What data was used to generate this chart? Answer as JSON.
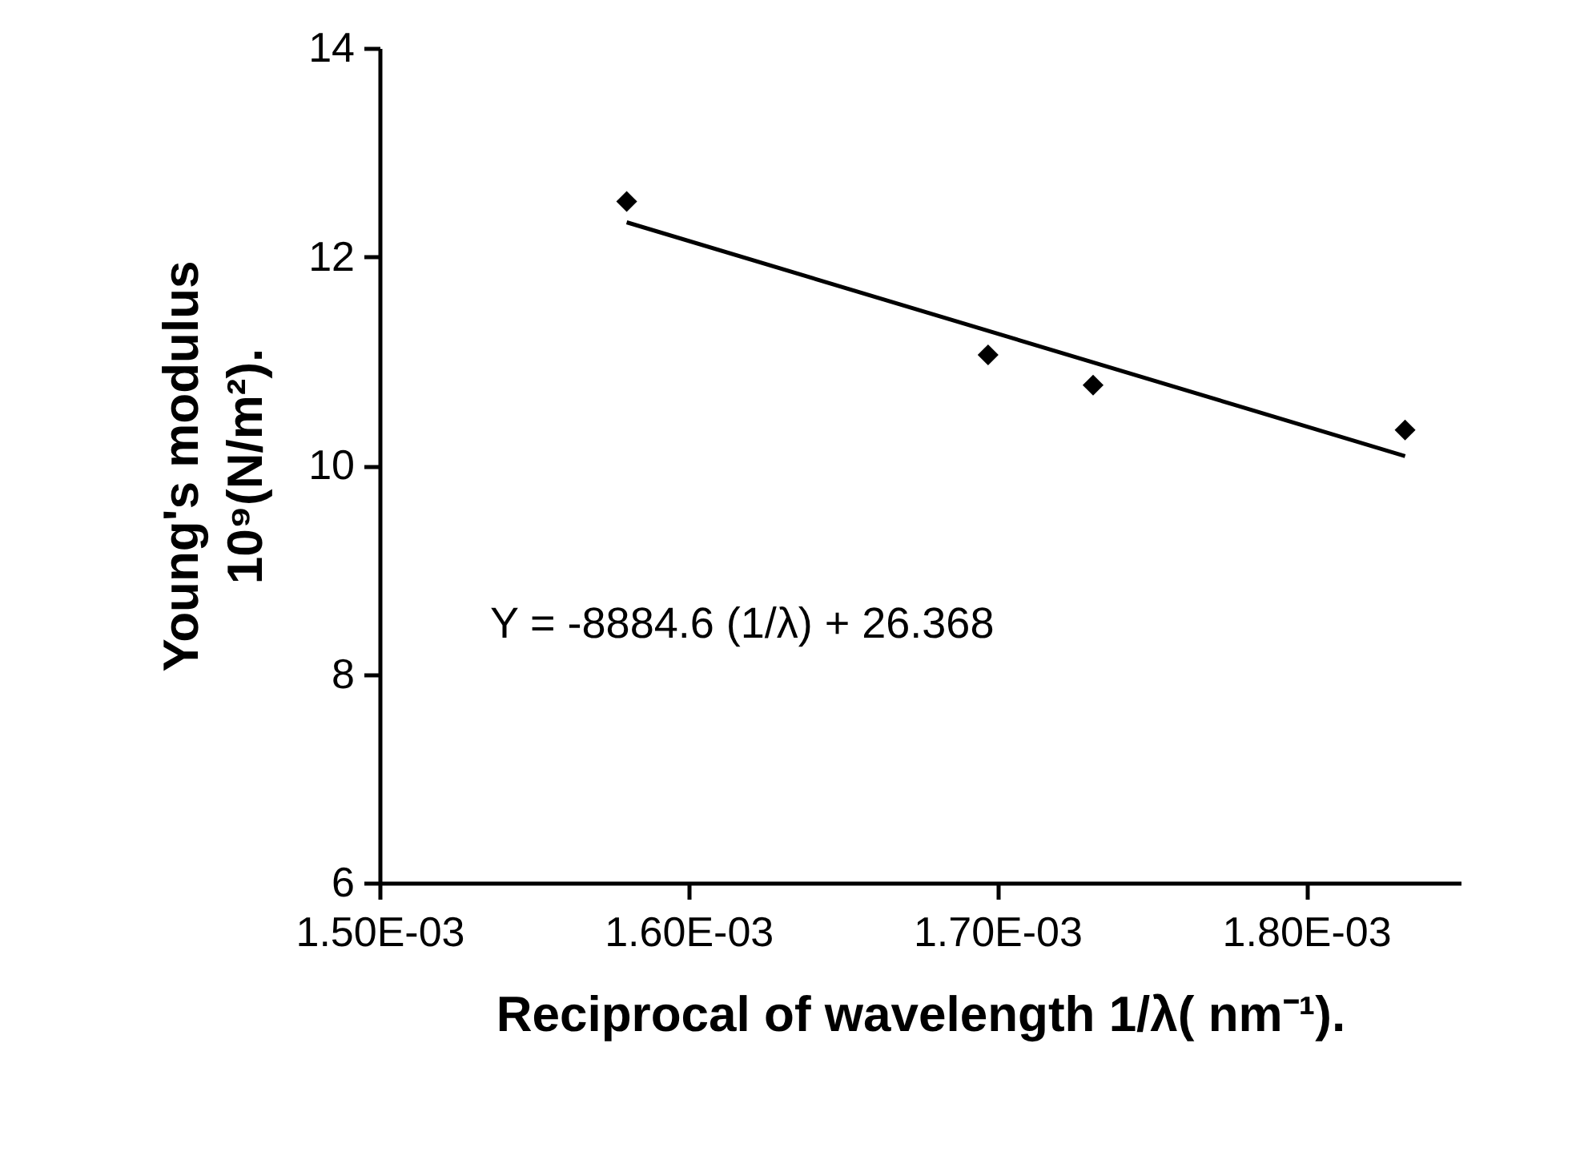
{
  "chart_data": {
    "type": "scatter",
    "xlabel": "Reciprocal of wavelength    1/λ( nm⁻¹).",
    "ylabel": "Young's modulus\n10⁹(N/m²).",
    "xlim": [
      0.0015,
      0.00185
    ],
    "xticks": [
      {
        "value": 0.0015,
        "label": "1.50E-03"
      },
      {
        "value": 0.0016,
        "label": "1.60E-03"
      },
      {
        "value": 0.0017,
        "label": "1.70E-03"
      },
      {
        "value": 0.0018,
        "label": "1.80E-03"
      }
    ],
    "ylim": [
      6,
      14
    ],
    "yticks": [
      6,
      8,
      10,
      12,
      14
    ],
    "grid": false,
    "marker": "diamond",
    "series": [
      {
        "color": "#000000",
        "x": [
          0.00158,
          0.001697,
          0.001731,
          0.001832
        ],
        "values": [
          12.53,
          11.06,
          10.77,
          10.34
        ]
      },
      {
        "type": "line",
        "color": "#000000",
        "marker": "none",
        "x": [
          0.00158,
          0.001832
        ],
        "values": [
          12.33,
          10.09
        ]
      }
    ],
    "annotations": [
      "Y = -8884.6  (1/λ) +  26.368"
    ]
  }
}
